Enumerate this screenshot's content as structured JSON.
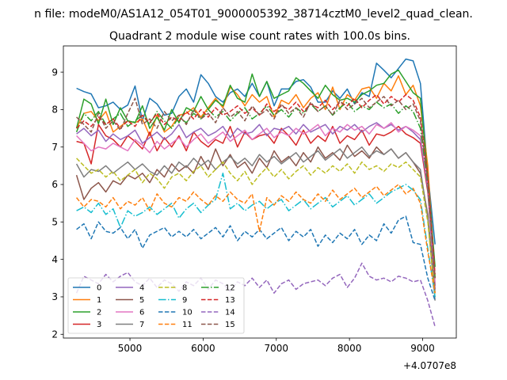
{
  "figure": {
    "suptitle": "n file: modeM0/AS1A12_054T01_9000005392_38714cztM0_level2_quad_clean.",
    "title": "Quadrant 2 module wise count rates with 100.0s bins.",
    "offset_label": "+4.0707e8"
  },
  "chart_data": {
    "type": "line",
    "title": "Quadrant 2 module wise count rates with 100.0s bins.",
    "xlabel": "",
    "ylabel": "",
    "xlim": [
      4090,
      9460
    ],
    "ylim": [
      1.9,
      9.7
    ],
    "x_offset": 407070000,
    "xticks": [
      5000,
      6000,
      7000,
      8000,
      9000
    ],
    "yticks": [
      2,
      3,
      4,
      5,
      6,
      7,
      8,
      9
    ],
    "x_start": 4270,
    "x_step": 100,
    "n_points": 50,
    "grid": false,
    "legend_placement": "lower-left",
    "legend_columns": 4,
    "series": [
      {
        "name": "0",
        "color": "#1f77b4",
        "dash": "solid",
        "values": [
          8.57,
          8.48,
          8.42,
          8.05,
          8.1,
          8.2,
          8.0,
          8.12,
          8.63,
          7.7,
          8.3,
          8.15,
          7.85,
          7.9,
          8.35,
          8.55,
          8.2,
          8.93,
          8.7,
          8.35,
          8.2,
          8.45,
          8.55,
          8.35,
          8.7,
          8.35,
          8.75,
          8.1,
          8.55,
          8.55,
          8.75,
          8.8,
          8.6,
          8.2,
          8.2,
          8.5,
          8.3,
          8.55,
          8.15,
          8.45,
          8.35,
          9.24,
          9.05,
          8.85,
          9.1,
          9.35,
          9.3,
          8.7,
          6.3,
          4.4
        ]
      },
      {
        "name": "1",
        "color": "#ff7f0e",
        "dash": "solid",
        "values": [
          7.5,
          7.9,
          7.95,
          7.7,
          7.95,
          7.4,
          7.55,
          7.7,
          7.65,
          7.75,
          7.3,
          7.85,
          7.4,
          7.55,
          7.85,
          7.9,
          8.05,
          7.8,
          8.05,
          8.3,
          8.05,
          8.6,
          8.4,
          8.1,
          8.4,
          8.2,
          8.35,
          7.8,
          8.25,
          8.15,
          8.4,
          8.05,
          8.3,
          8.45,
          8.0,
          8.6,
          8.0,
          8.4,
          8.25,
          8.55,
          8.6,
          8.3,
          8.7,
          8.5,
          8.9,
          8.4,
          8.65,
          8.1,
          6.5,
          3.5
        ]
      },
      {
        "name": "2",
        "color": "#2ca02c",
        "dash": "solid",
        "values": [
          7.5,
          8.28,
          8.15,
          7.62,
          8.28,
          7.6,
          8.05,
          7.7,
          7.65,
          8.1,
          7.5,
          7.8,
          7.45,
          8.0,
          7.65,
          8.05,
          7.95,
          8.35,
          8.0,
          8.25,
          8.1,
          8.65,
          8.3,
          8.2,
          8.95,
          8.35,
          8.75,
          8.3,
          8.4,
          8.5,
          8.85,
          8.7,
          8.5,
          8.3,
          8.65,
          8.4,
          8.25,
          8.3,
          8.2,
          8.4,
          8.5,
          8.65,
          8.7,
          8.95,
          9.05,
          8.75,
          8.45,
          8.3,
          6.2,
          3.8
        ]
      },
      {
        "name": "3",
        "color": "#d62728",
        "dash": "solid",
        "values": [
          7.15,
          7.1,
          6.55,
          7.6,
          7.3,
          7.2,
          7.0,
          7.3,
          7.15,
          6.95,
          7.4,
          6.9,
          7.25,
          7.0,
          7.3,
          6.9,
          7.4,
          7.15,
          7.0,
          7.2,
          7.1,
          7.55,
          7.0,
          7.4,
          7.2,
          7.3,
          7.35,
          7.1,
          7.5,
          7.3,
          7.05,
          7.45,
          7.1,
          7.3,
          7.15,
          7.55,
          7.1,
          7.3,
          7.2,
          7.45,
          7.05,
          7.35,
          7.3,
          7.4,
          7.55,
          7.35,
          7.25,
          7.1,
          5.8,
          3.3
        ]
      },
      {
        "name": "4",
        "color": "#9467bd",
        "dash": "solid",
        "values": [
          7.35,
          7.5,
          7.3,
          7.45,
          7.15,
          7.35,
          7.2,
          7.3,
          7.45,
          7.1,
          7.25,
          7.4,
          7.2,
          7.35,
          7.6,
          7.25,
          7.4,
          7.5,
          7.3,
          7.4,
          7.55,
          7.25,
          7.5,
          7.35,
          7.4,
          7.6,
          7.3,
          7.5,
          7.45,
          7.55,
          7.35,
          7.6,
          7.4,
          7.5,
          7.6,
          7.35,
          7.55,
          7.45,
          7.6,
          7.4,
          7.55,
          7.65,
          7.5,
          7.6,
          7.45,
          7.55,
          7.4,
          7.2,
          5.9,
          3.2
        ]
      },
      {
        "name": "5",
        "color": "#8c564b",
        "dash": "solid",
        "values": [
          6.25,
          5.6,
          5.9,
          6.05,
          5.8,
          6.1,
          6.0,
          6.25,
          6.15,
          6.3,
          6.05,
          6.4,
          6.2,
          6.55,
          6.35,
          6.5,
          6.3,
          6.75,
          6.4,
          6.95,
          6.5,
          6.8,
          6.45,
          6.6,
          6.3,
          6.7,
          6.45,
          6.9,
          6.6,
          6.75,
          6.5,
          6.85,
          6.6,
          7.0,
          6.7,
          6.85,
          6.65,
          7.05,
          6.75,
          6.9,
          6.7,
          7.0,
          6.8,
          6.95,
          6.7,
          6.85,
          6.6,
          6.3,
          5.2,
          3.1
        ]
      },
      {
        "name": "6",
        "color": "#e377c2",
        "dash": "solid",
        "values": [
          7.3,
          7.1,
          6.9,
          7.0,
          6.95,
          7.1,
          7.0,
          6.9,
          7.2,
          7.05,
          6.85,
          7.15,
          6.95,
          7.1,
          7.25,
          7.0,
          7.2,
          7.35,
          7.1,
          7.25,
          7.4,
          7.15,
          7.3,
          7.45,
          7.2,
          7.35,
          7.5,
          7.25,
          7.4,
          7.3,
          7.5,
          7.35,
          7.45,
          7.6,
          7.3,
          7.5,
          7.4,
          7.6,
          7.45,
          7.55,
          7.35,
          7.6,
          7.5,
          7.65,
          7.4,
          7.55,
          7.45,
          7.3,
          6.0,
          3.4
        ]
      },
      {
        "name": "7",
        "color": "#7f7f7f",
        "dash": "solid",
        "values": [
          6.55,
          6.2,
          6.4,
          6.35,
          6.5,
          6.3,
          6.45,
          6.6,
          6.4,
          6.55,
          6.35,
          6.25,
          6.5,
          6.3,
          6.6,
          6.45,
          6.7,
          6.5,
          6.65,
          6.4,
          6.6,
          6.75,
          6.55,
          6.7,
          6.5,
          6.8,
          6.6,
          6.75,
          6.55,
          6.7,
          6.85,
          6.6,
          6.75,
          6.9,
          6.65,
          6.8,
          6.95,
          6.7,
          6.85,
          7.0,
          6.75,
          6.9,
          6.8,
          6.95,
          6.7,
          6.85,
          6.6,
          6.4,
          5.1,
          2.9
        ]
      },
      {
        "name": "8",
        "color": "#bcbd22",
        "dash": "dash",
        "values": [
          6.7,
          6.5,
          6.3,
          6.4,
          6.2,
          6.35,
          6.1,
          6.25,
          6.4,
          6.05,
          6.3,
          6.15,
          5.9,
          6.2,
          6.3,
          6.1,
          6.35,
          6.5,
          6.2,
          6.4,
          6.6,
          6.3,
          6.1,
          6.35,
          6.0,
          6.25,
          6.45,
          6.2,
          6.4,
          6.15,
          6.35,
          6.5,
          6.25,
          6.45,
          6.3,
          6.5,
          6.35,
          6.55,
          6.3,
          6.6,
          6.4,
          6.5,
          6.35,
          6.55,
          6.45,
          6.6,
          6.4,
          6.2,
          5.0,
          3.0
        ]
      },
      {
        "name": "9",
        "color": "#17becf",
        "dash": "dashdot",
        "values": [
          5.3,
          5.4,
          5.25,
          5.5,
          5.2,
          5.35,
          4.85,
          5.3,
          5.15,
          5.25,
          5.4,
          5.2,
          5.35,
          5.5,
          5.1,
          5.35,
          5.5,
          5.25,
          5.45,
          5.6,
          6.3,
          5.35,
          5.5,
          5.3,
          5.45,
          5.55,
          5.35,
          5.5,
          5.6,
          5.3,
          5.45,
          5.6,
          5.35,
          5.5,
          5.65,
          5.4,
          5.55,
          5.7,
          5.45,
          5.6,
          5.75,
          5.5,
          5.65,
          5.8,
          5.9,
          6.0,
          5.85,
          5.6,
          4.3,
          3.0
        ]
      },
      {
        "name": "10",
        "color": "#1f77b4",
        "dash": "dash",
        "values": [
          4.8,
          4.95,
          4.55,
          5.0,
          4.75,
          4.7,
          4.85,
          4.55,
          4.8,
          4.3,
          4.65,
          4.75,
          4.85,
          4.6,
          4.75,
          4.6,
          4.8,
          4.55,
          4.7,
          4.85,
          4.6,
          4.9,
          4.5,
          4.75,
          4.6,
          4.8,
          4.55,
          4.7,
          4.85,
          4.5,
          4.75,
          4.6,
          4.8,
          4.35,
          4.65,
          4.45,
          4.7,
          4.55,
          4.8,
          4.4,
          4.65,
          4.5,
          4.95,
          4.7,
          5.05,
          5.15,
          4.45,
          4.4,
          3.5,
          2.9
        ]
      },
      {
        "name": "11",
        "color": "#ff7f0e",
        "dash": "dash",
        "values": [
          5.65,
          5.4,
          5.6,
          5.55,
          5.4,
          5.65,
          5.35,
          5.55,
          5.45,
          5.65,
          5.3,
          5.75,
          5.5,
          5.4,
          5.65,
          5.55,
          5.8,
          5.6,
          5.45,
          5.7,
          5.55,
          5.8,
          5.6,
          5.5,
          5.75,
          4.75,
          5.65,
          5.45,
          5.7,
          5.55,
          5.8,
          5.6,
          5.5,
          5.75,
          5.55,
          5.85,
          5.6,
          5.75,
          5.9,
          5.65,
          5.8,
          5.95,
          5.7,
          5.85,
          6.0,
          5.75,
          5.9,
          5.5,
          4.2,
          3.1
        ]
      },
      {
        "name": "12",
        "color": "#2ca02c",
        "dash": "dashdot",
        "values": [
          7.4,
          7.9,
          7.7,
          7.95,
          7.6,
          7.75,
          7.9,
          7.55,
          7.7,
          7.85,
          7.6,
          7.95,
          7.7,
          7.5,
          7.8,
          7.65,
          7.9,
          7.75,
          8.0,
          7.8,
          7.95,
          7.7,
          7.9,
          8.05,
          7.75,
          7.9,
          8.1,
          7.85,
          8.0,
          7.8,
          8.05,
          7.9,
          8.15,
          7.95,
          8.1,
          7.85,
          8.05,
          8.2,
          7.95,
          8.1,
          8.0,
          8.2,
          8.05,
          8.15,
          7.9,
          8.1,
          7.95,
          7.5,
          6.0,
          3.5
        ]
      },
      {
        "name": "13",
        "color": "#d62728",
        "dash": "dash",
        "values": [
          7.5,
          7.7,
          7.55,
          7.8,
          7.6,
          7.75,
          7.5,
          7.7,
          7.55,
          7.85,
          7.65,
          7.9,
          7.6,
          7.8,
          7.7,
          7.95,
          7.75,
          8.0,
          7.8,
          8.05,
          7.85,
          7.95,
          8.1,
          7.9,
          8.05,
          7.85,
          8.15,
          7.95,
          8.1,
          8.0,
          8.2,
          7.95,
          8.15,
          8.05,
          8.25,
          8.0,
          8.2,
          8.1,
          8.3,
          8.05,
          8.25,
          8.4,
          8.15,
          8.35,
          8.2,
          8.4,
          8.25,
          7.8,
          6.2,
          3.6
        ]
      },
      {
        "name": "14",
        "color": "#9467bd",
        "dash": "dash",
        "values": [
          3.1,
          3.55,
          3.45,
          3.35,
          3.6,
          3.4,
          3.55,
          3.65,
          3.4,
          3.3,
          3.5,
          3.25,
          3.45,
          3.35,
          3.15,
          3.4,
          3.3,
          3.5,
          3.2,
          3.45,
          3.35,
          3.15,
          3.4,
          3.3,
          3.5,
          3.25,
          3.45,
          3.1,
          3.35,
          3.45,
          3.2,
          3.35,
          3.4,
          3.45,
          3.3,
          3.5,
          3.6,
          3.25,
          3.5,
          3.9,
          3.55,
          3.45,
          3.5,
          3.4,
          3.55,
          3.5,
          3.4,
          3.45,
          2.9,
          2.2
        ]
      },
      {
        "name": "15",
        "color": "#8c564b",
        "dash": "dash",
        "values": [
          7.8,
          7.6,
          7.4,
          7.9,
          7.5,
          7.7,
          7.45,
          7.9,
          8.3,
          7.6,
          7.75,
          7.5,
          7.95,
          7.7,
          7.85,
          7.6,
          8.0,
          7.75,
          7.9,
          7.65,
          8.05,
          7.8,
          7.95,
          7.7,
          8.1,
          7.85,
          8.0,
          7.75,
          8.15,
          7.9,
          8.05,
          7.8,
          8.2,
          7.95,
          8.1,
          7.85,
          8.25,
          8.0,
          8.15,
          8.3,
          8.05,
          8.2,
          8.35,
          8.1,
          8.25,
          8.0,
          8.15,
          7.7,
          6.1,
          3.5
        ]
      }
    ]
  }
}
